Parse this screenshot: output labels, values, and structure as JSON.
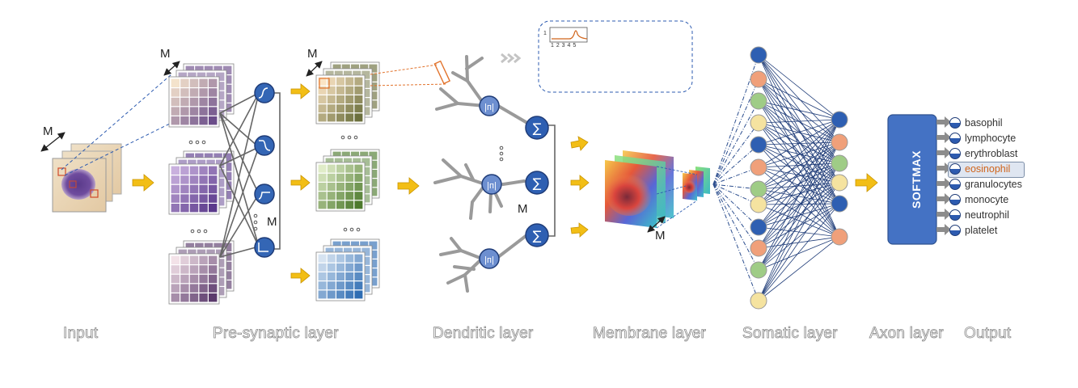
{
  "labels": {
    "m": "M",
    "softmax": "SOFTMAX",
    "inset_ticks": "1 2 3 4 5",
    "inset_y": "1"
  },
  "stages": [
    {
      "id": "input",
      "label": "Input"
    },
    {
      "id": "pre",
      "label": "Pre-synaptic layer"
    },
    {
      "id": "dend",
      "label": "Dendritic layer"
    },
    {
      "id": "memb",
      "label": "Membrane layer"
    },
    {
      "id": "soma",
      "label": "Somatic layer"
    },
    {
      "id": "axon",
      "label": "Axon layer"
    },
    {
      "id": "output",
      "label": "Output"
    }
  ],
  "classes": [
    {
      "label": "basophil"
    },
    {
      "label": "lymphocyte"
    },
    {
      "label": "erythroblast"
    },
    {
      "label": "eosinophil",
      "selected": true
    },
    {
      "label": "granulocytes"
    },
    {
      "label": "monocyte"
    },
    {
      "label": "neutrophil"
    },
    {
      "label": "platelet"
    }
  ],
  "colors": {
    "blue_node": "#2d5bb0",
    "node_stroke": "#1f3c78",
    "arrow_yellow": "#f2be16",
    "softmax_fill": "#4472c4",
    "purple": "#5b3a8c",
    "green": "#4d7a2c",
    "blue_grid": "#2f6db3",
    "peach": "#e9b98b"
  }
}
